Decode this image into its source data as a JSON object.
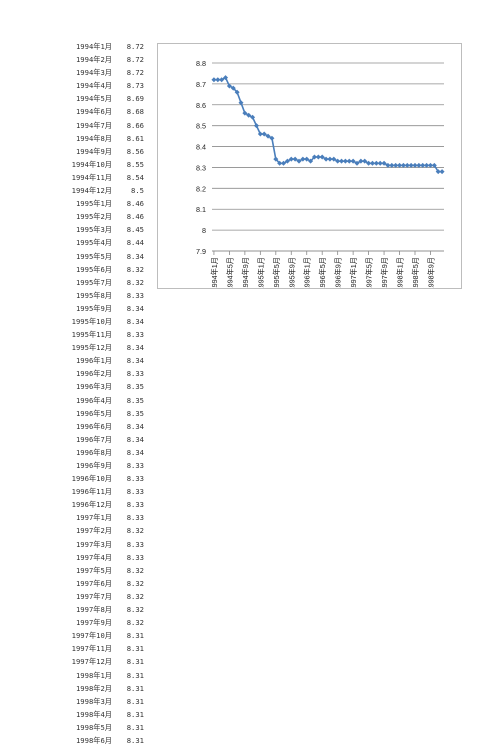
{
  "table": {
    "rows": [
      {
        "date": "1994年1月",
        "value": "8.72"
      },
      {
        "date": "1994年2月",
        "value": "8.72"
      },
      {
        "date": "1994年3月",
        "value": "8.72"
      },
      {
        "date": "1994年4月",
        "value": "8.73"
      },
      {
        "date": "1994年5月",
        "value": "8.69"
      },
      {
        "date": "1994年6月",
        "value": "8.68"
      },
      {
        "date": "1994年7月",
        "value": "8.66"
      },
      {
        "date": "1994年8月",
        "value": "8.61"
      },
      {
        "date": "1994年9月",
        "value": "8.56"
      },
      {
        "date": "1994年10月",
        "value": "8.55"
      },
      {
        "date": "1994年11月",
        "value": "8.54"
      },
      {
        "date": "1994年12月",
        "value": "8.5"
      },
      {
        "date": "1995年1月",
        "value": "8.46"
      },
      {
        "date": "1995年2月",
        "value": "8.46"
      },
      {
        "date": "1995年3月",
        "value": "8.45"
      },
      {
        "date": "1995年4月",
        "value": "8.44"
      },
      {
        "date": "1995年5月",
        "value": "8.34"
      },
      {
        "date": "1995年6月",
        "value": "8.32"
      },
      {
        "date": "1995年7月",
        "value": "8.32"
      },
      {
        "date": "1995年8月",
        "value": "8.33"
      },
      {
        "date": "1995年9月",
        "value": "8.34"
      },
      {
        "date": "1995年10月",
        "value": "8.34"
      },
      {
        "date": "1995年11月",
        "value": "8.33"
      },
      {
        "date": "1995年12月",
        "value": "8.34"
      },
      {
        "date": "1996年1月",
        "value": "8.34"
      },
      {
        "date": "1996年2月",
        "value": "8.33"
      },
      {
        "date": "1996年3月",
        "value": "8.35"
      },
      {
        "date": "1996年4月",
        "value": "8.35"
      },
      {
        "date": "1996年5月",
        "value": "8.35"
      },
      {
        "date": "1996年6月",
        "value": "8.34"
      },
      {
        "date": "1996年7月",
        "value": "8.34"
      },
      {
        "date": "1996年8月",
        "value": "8.34"
      },
      {
        "date": "1996年9月",
        "value": "8.33"
      },
      {
        "date": "1996年10月",
        "value": "8.33"
      },
      {
        "date": "1996年11月",
        "value": "8.33"
      },
      {
        "date": "1996年12月",
        "value": "8.33"
      },
      {
        "date": "1997年1月",
        "value": "8.33"
      },
      {
        "date": "1997年2月",
        "value": "8.32"
      },
      {
        "date": "1997年3月",
        "value": "8.33"
      },
      {
        "date": "1997年4月",
        "value": "8.33"
      },
      {
        "date": "1997年5月",
        "value": "8.32"
      },
      {
        "date": "1997年6月",
        "value": "8.32"
      },
      {
        "date": "1997年7月",
        "value": "8.32"
      },
      {
        "date": "1997年8月",
        "value": "8.32"
      },
      {
        "date": "1997年9月",
        "value": "8.32"
      },
      {
        "date": "1997年10月",
        "value": "8.31"
      },
      {
        "date": "1997年11月",
        "value": "8.31"
      },
      {
        "date": "1997年12月",
        "value": "8.31"
      },
      {
        "date": "1998年1月",
        "value": "8.31"
      },
      {
        "date": "1998年2月",
        "value": "8.31"
      },
      {
        "date": "1998年3月",
        "value": "8.31"
      },
      {
        "date": "1998年4月",
        "value": "8.31"
      },
      {
        "date": "1998年5月",
        "value": "8.31"
      },
      {
        "date": "1998年6月",
        "value": "8.31"
      }
    ]
  },
  "chart_data": {
    "type": "line",
    "color": "#4a7ebb",
    "marker": "diamond",
    "grid": true,
    "legend": "none",
    "ylim": [
      7.9,
      8.8
    ],
    "yticks": [
      "8.8",
      "8.7",
      "8.6",
      "8.5",
      "8.4",
      "8.3",
      "8.2",
      "8.1",
      "8",
      "7.9"
    ],
    "xtick_labels": [
      "1994年1月",
      "1994年5月",
      "1994年9月",
      "1995年1月",
      "1995年5月",
      "1995年9月",
      "1996年1月",
      "1996年5月",
      "1996年9月",
      "1997年1月",
      "1997年5月",
      "1997年9月",
      "1998年1月",
      "1998年5月",
      "1998年9月"
    ],
    "x": [
      "1994年1月",
      "1994年2月",
      "1994年3月",
      "1994年4月",
      "1994年5月",
      "1994年6月",
      "1994年7月",
      "1994年8月",
      "1994年9月",
      "1994年10月",
      "1994年11月",
      "1994年12月",
      "1995年1月",
      "1995年2月",
      "1995年3月",
      "1995年4月",
      "1995年5月",
      "1995年6月",
      "1995年7月",
      "1995年8月",
      "1995年9月",
      "1995年10月",
      "1995年11月",
      "1995年12月",
      "1996年1月",
      "1996年2月",
      "1996年3月",
      "1996年4月",
      "1996年5月",
      "1996年6月",
      "1996年7月",
      "1996年8月",
      "1996年9月",
      "1996年10月",
      "1996年11月",
      "1996年12月",
      "1997年1月",
      "1997年2月",
      "1997年3月",
      "1997年4月",
      "1997年5月",
      "1997年6月",
      "1997年7月",
      "1997年8月",
      "1997年9月",
      "1997年10月",
      "1997年11月",
      "1997年12月",
      "1998年1月",
      "1998年2月",
      "1998年3月",
      "1998年4月",
      "1998年5月",
      "1998年6月",
      "1998年7月",
      "1998年8月",
      "1998年9月",
      "1998年10月",
      "1998年11月",
      "1998年12月"
    ],
    "values": [
      8.72,
      8.72,
      8.72,
      8.73,
      8.69,
      8.68,
      8.66,
      8.61,
      8.56,
      8.55,
      8.54,
      8.5,
      8.46,
      8.46,
      8.45,
      8.44,
      8.34,
      8.32,
      8.32,
      8.33,
      8.34,
      8.34,
      8.33,
      8.34,
      8.34,
      8.33,
      8.35,
      8.35,
      8.35,
      8.34,
      8.34,
      8.34,
      8.33,
      8.33,
      8.33,
      8.33,
      8.33,
      8.32,
      8.33,
      8.33,
      8.32,
      8.32,
      8.32,
      8.32,
      8.32,
      8.31,
      8.31,
      8.31,
      8.31,
      8.31,
      8.31,
      8.31,
      8.31,
      8.31,
      8.31,
      8.31,
      8.31,
      8.31,
      8.28,
      8.28
    ]
  }
}
